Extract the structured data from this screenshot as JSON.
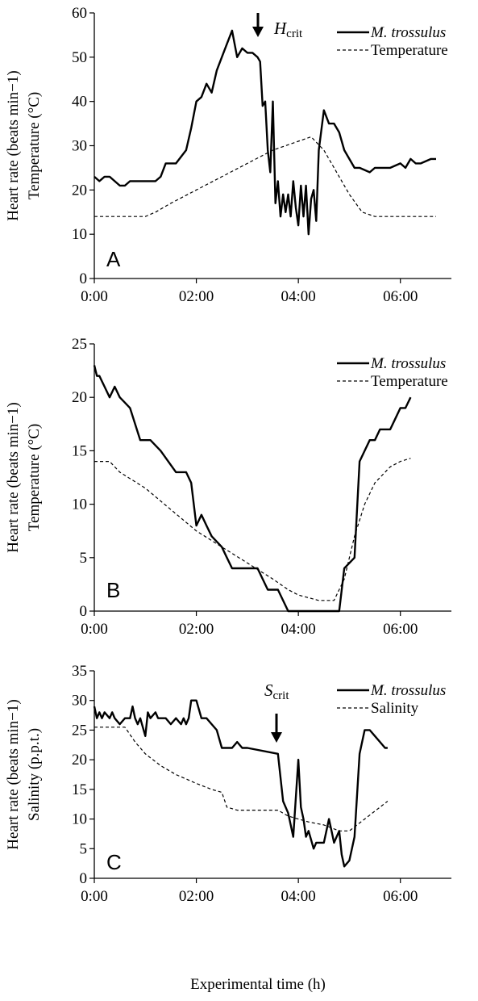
{
  "chart_data": [
    {
      "type": "line",
      "panel_label": "A",
      "ylabel_line1": "Heart rate (beats min−1)",
      "ylabel_line2": "Temperature (°C)",
      "ylim": [
        0,
        60
      ],
      "yticks": [
        0,
        10,
        20,
        30,
        40,
        50,
        60
      ],
      "xlim": [
        0,
        7
      ],
      "xticks": [
        "0:00",
        "02:00",
        "04:00",
        "06:00"
      ],
      "xtick_hours": [
        0,
        2,
        4,
        6
      ],
      "legend": [
        {
          "label": "M. trossulus",
          "style": "solid",
          "italic": true
        },
        {
          "label": "Temperature",
          "style": "dashed",
          "italic": false
        }
      ],
      "marker": {
        "label_main": "H",
        "label_sub": "crit",
        "x": 3.2
      },
      "series": [
        {
          "name": "M. trossulus",
          "style": "solid",
          "x": [
            0,
            0.1,
            0.2,
            0.3,
            0.4,
            0.5,
            0.6,
            0.7,
            0.8,
            1.0,
            1.2,
            1.3,
            1.4,
            1.6,
            1.8,
            1.9,
            2.0,
            2.1,
            2.2,
            2.3,
            2.4,
            2.5,
            2.6,
            2.7,
            2.8,
            2.9,
            3.0,
            3.1,
            3.2,
            3.25,
            3.3,
            3.35,
            3.4,
            3.45,
            3.5,
            3.55,
            3.6,
            3.65,
            3.7,
            3.75,
            3.8,
            3.85,
            3.9,
            3.95,
            4.0,
            4.05,
            4.1,
            4.15,
            4.2,
            4.25,
            4.3,
            4.35,
            4.4,
            4.5,
            4.6,
            4.7,
            4.8,
            4.9,
            5.0,
            5.1,
            5.2,
            5.4,
            5.5,
            5.6,
            5.8,
            6.0,
            6.1,
            6.2,
            6.3,
            6.4,
            6.6,
            6.7
          ],
          "y": [
            23,
            22,
            23,
            23,
            22,
            21,
            21,
            22,
            22,
            22,
            22,
            23,
            26,
            26,
            29,
            34,
            40,
            41,
            44,
            42,
            47,
            50,
            53,
            56,
            50,
            52,
            51,
            51,
            50,
            49,
            39,
            40,
            29,
            24,
            40,
            17,
            22,
            14,
            19,
            15,
            19,
            14,
            22,
            16,
            12,
            21,
            14,
            21,
            10,
            18,
            20,
            13,
            29,
            38,
            35,
            35,
            33,
            29,
            27,
            25,
            25,
            24,
            25,
            25,
            25,
            26,
            25,
            27,
            26,
            26,
            27,
            27
          ]
        },
        {
          "name": "Temperature",
          "style": "dashed",
          "x": [
            0,
            0.5,
            1.0,
            1.2,
            1.5,
            2.0,
            2.5,
            3.0,
            3.5,
            4.0,
            4.25,
            4.5,
            4.8,
            5.0,
            5.25,
            5.5,
            6.0,
            6.7
          ],
          "y": [
            14,
            14,
            14,
            15,
            17,
            20,
            23,
            26,
            29,
            31,
            32,
            29,
            23,
            19,
            15,
            14,
            14,
            14
          ]
        }
      ]
    },
    {
      "type": "line",
      "panel_label": "B",
      "ylabel_line1": "Heart rate (beats min−1)",
      "ylabel_line2": "Temperature (°C)",
      "ylim": [
        0,
        25
      ],
      "yticks": [
        0,
        5,
        10,
        15,
        20,
        25
      ],
      "xlim": [
        0,
        7
      ],
      "xticks": [
        "0:00",
        "02:00",
        "04:00",
        "06:00"
      ],
      "xtick_hours": [
        0,
        2,
        4,
        6
      ],
      "legend": [
        {
          "label": "M. trossulus",
          "style": "solid",
          "italic": true
        },
        {
          "label": "Temperature",
          "style": "dashed",
          "italic": false
        }
      ],
      "series": [
        {
          "name": "M. trossulus",
          "style": "solid",
          "x": [
            0,
            0.05,
            0.1,
            0.2,
            0.3,
            0.4,
            0.5,
            0.6,
            0.7,
            0.9,
            1.0,
            1.1,
            1.3,
            1.6,
            1.8,
            1.9,
            2.0,
            2.1,
            2.2,
            2.3,
            2.5,
            2.6,
            2.7,
            2.9,
            3.2,
            3.4,
            3.6,
            3.8,
            3.9,
            4.3,
            4.8,
            4.9,
            5.1,
            5.2,
            5.3,
            5.4,
            5.5,
            5.6,
            5.8,
            5.9,
            6.0,
            6.1,
            6.2
          ],
          "y": [
            23,
            22,
            22,
            21,
            20,
            21,
            20,
            19.5,
            19,
            16,
            16,
            16,
            15,
            13,
            13,
            12,
            8,
            9,
            8,
            7,
            6,
            5,
            4,
            4,
            4,
            2,
            2,
            0,
            0,
            0,
            0,
            4,
            5,
            14,
            15,
            16,
            16,
            17,
            17,
            18,
            19,
            19,
            20
          ]
        },
        {
          "name": "Temperature",
          "style": "dashed",
          "x": [
            0,
            0.3,
            0.5,
            1.0,
            1.5,
            2.0,
            2.5,
            3.0,
            3.5,
            3.8,
            4.0,
            4.4,
            4.7,
            4.9,
            5.1,
            5.3,
            5.5,
            5.8,
            6.0,
            6.2
          ],
          "y": [
            14,
            14,
            13,
            11.5,
            9.5,
            7.5,
            6,
            4.5,
            3,
            2,
            1.5,
            1,
            1,
            3,
            7,
            10,
            12,
            13.5,
            14,
            14.3
          ]
        }
      ]
    },
    {
      "type": "line",
      "panel_label": "C",
      "ylabel_line1": "Heart rate (beats min−1)",
      "ylabel_line2": "Salinity (p.p.t.)",
      "ylim": [
        0,
        35
      ],
      "yticks": [
        0,
        5,
        10,
        15,
        20,
        25,
        30,
        35
      ],
      "xlim": [
        0,
        7
      ],
      "xticks": [
        "0:00",
        "02:00",
        "04:00",
        "06:00"
      ],
      "xtick_hours": [
        0,
        2,
        4,
        6
      ],
      "legend": [
        {
          "label": "M. trossulus",
          "style": "solid",
          "italic": true
        },
        {
          "label": "Salinity",
          "style": "dashed",
          "italic": false
        }
      ],
      "marker": {
        "label_main": "S",
        "label_sub": "crit",
        "x": 3.6
      },
      "xlabel": "Experimental time (h)",
      "series": [
        {
          "name": "M. trossulus",
          "style": "solid",
          "x": [
            0,
            0.05,
            0.1,
            0.15,
            0.2,
            0.3,
            0.35,
            0.4,
            0.5,
            0.6,
            0.7,
            0.75,
            0.8,
            0.85,
            0.9,
            1.0,
            1.05,
            1.1,
            1.2,
            1.25,
            1.3,
            1.4,
            1.5,
            1.6,
            1.7,
            1.75,
            1.8,
            1.85,
            1.9,
            2.0,
            2.1,
            2.2,
            2.3,
            2.4,
            2.5,
            2.6,
            2.7,
            2.8,
            2.9,
            3.0,
            3.6,
            3.7,
            3.8,
            3.9,
            4.0,
            4.05,
            4.1,
            4.15,
            4.2,
            4.3,
            4.35,
            4.4,
            4.5,
            4.6,
            4.65,
            4.7,
            4.8,
            4.85,
            4.9,
            5.0,
            5.1,
            5.2,
            5.3,
            5.4,
            5.5,
            5.6,
            5.7,
            5.75
          ],
          "y": [
            29,
            27,
            28,
            27,
            28,
            27,
            28,
            27,
            26,
            27,
            27,
            29,
            27,
            26,
            27,
            24,
            28,
            27,
            28,
            27,
            27,
            27,
            26,
            27,
            26,
            27,
            26,
            27,
            30,
            30,
            27,
            27,
            26,
            25,
            22,
            22,
            22,
            23,
            22,
            22,
            21,
            13,
            11,
            7,
            20,
            12,
            10,
            7,
            8,
            5,
            6,
            6,
            6,
            10,
            8,
            6,
            8,
            4,
            2,
            3,
            7,
            21,
            25,
            25,
            24,
            23,
            22,
            22
          ]
        },
        {
          "name": "Salinity",
          "style": "dashed",
          "x": [
            0,
            0.3,
            0.6,
            0.8,
            1.0,
            1.3,
            1.6,
            2.0,
            2.3,
            2.5,
            2.6,
            2.8,
            3.0,
            3.6,
            3.8,
            4.0,
            4.2,
            4.5,
            4.8,
            5.0,
            5.3,
            5.6,
            5.75
          ],
          "y": [
            25.5,
            25.5,
            25.5,
            23,
            21,
            19,
            17.5,
            16,
            15,
            14.5,
            12,
            11.5,
            11.5,
            11.5,
            10.5,
            10,
            9.5,
            9,
            8,
            8,
            10,
            12,
            13
          ]
        }
      ]
    }
  ]
}
